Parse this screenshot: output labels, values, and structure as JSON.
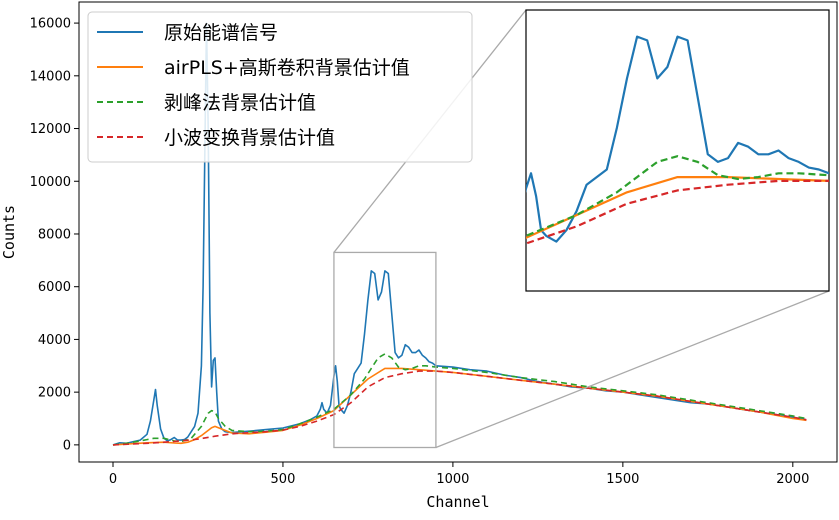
{
  "chart_data": {
    "type": "line",
    "title": "",
    "xlabel": "Channel",
    "ylabel": "Counts",
    "xlim": [
      -100,
      2130
    ],
    "ylim": [
      -650,
      16800
    ],
    "xticks": [
      0,
      500,
      1000,
      1500,
      2000
    ],
    "yticks": [
      0,
      2000,
      4000,
      6000,
      8000,
      10000,
      12000,
      14000,
      16000
    ],
    "legend_position": "top-left",
    "series": [
      {
        "name": "原始能谱信号",
        "color": "#1f77b4",
        "style": "solid",
        "x": [
          0,
          20,
          40,
          60,
          80,
          100,
          110,
          120,
          125,
          130,
          140,
          150,
          160,
          170,
          180,
          190,
          200,
          210,
          220,
          230,
          240,
          250,
          260,
          265,
          270,
          275,
          280,
          285,
          290,
          295,
          300,
          305,
          310,
          320,
          330,
          340,
          350,
          380,
          400,
          450,
          500,
          550,
          580,
          600,
          610,
          615,
          620,
          630,
          640,
          650,
          655,
          660,
          665,
          670,
          680,
          690,
          700,
          710,
          720,
          730,
          740,
          750,
          760,
          770,
          775,
          780,
          790,
          800,
          810,
          820,
          830,
          840,
          850,
          860,
          870,
          880,
          890,
          900,
          910,
          920,
          930,
          940,
          950,
          1000,
          1050,
          1100,
          1150,
          1200,
          1250,
          1300,
          1350,
          1400,
          1450,
          1500,
          1550,
          1600,
          1650,
          1700,
          1750,
          1800,
          1850,
          1900,
          1950,
          2000,
          2040
        ],
        "y": [
          0,
          80,
          60,
          120,
          180,
          400,
          900,
          1700,
          2100,
          1500,
          600,
          250,
          150,
          200,
          280,
          180,
          180,
          200,
          300,
          500,
          700,
          1200,
          3000,
          6000,
          11000,
          16000,
          12000,
          5000,
          2200,
          3200,
          3300,
          2000,
          900,
          600,
          500,
          480,
          470,
          500,
          520,
          580,
          640,
          800,
          950,
          1100,
          1350,
          1600,
          1350,
          1200,
          1500,
          2600,
          3000,
          2400,
          1500,
          1350,
          1200,
          1500,
          2000,
          2700,
          2900,
          3100,
          4200,
          5500,
          6600,
          6500,
          6000,
          5500,
          5800,
          6600,
          6500,
          5000,
          3500,
          3300,
          3400,
          3800,
          3700,
          3500,
          3500,
          3600,
          3400,
          3300,
          3150,
          3100,
          3000,
          2950,
          2850,
          2800,
          2650,
          2550,
          2400,
          2300,
          2200,
          2150,
          2050,
          2000,
          1900,
          1800,
          1700,
          1600,
          1550,
          1450,
          1350,
          1250,
          1150,
          1050,
          950
        ]
      },
      {
        "name": "airPLS+高斯卷积背景估计值",
        "color": "#ff7f0e",
        "style": "solid",
        "x": [
          0,
          50,
          100,
          150,
          180,
          200,
          220,
          240,
          260,
          280,
          290,
          300,
          310,
          330,
          350,
          400,
          450,
          500,
          550,
          600,
          650,
          700,
          750,
          800,
          850,
          900,
          950,
          1000,
          1100,
          1200,
          1300,
          1400,
          1500,
          1600,
          1700,
          1800,
          1900,
          2000,
          2040
        ],
        "y": [
          0,
          40,
          80,
          100,
          70,
          60,
          100,
          200,
          350,
          550,
          650,
          700,
          650,
          550,
          450,
          420,
          480,
          550,
          750,
          1000,
          1300,
          1900,
          2500,
          2900,
          2900,
          2850,
          2800,
          2750,
          2600,
          2450,
          2300,
          2150,
          2000,
          1850,
          1650,
          1450,
          1250,
          1000,
          930
        ]
      },
      {
        "name": "剥峰法背景估计值",
        "color": "#2ca02c",
        "style": "dashed",
        "x": [
          0,
          50,
          100,
          120,
          150,
          180,
          200,
          230,
          260,
          280,
          290,
          300,
          310,
          330,
          350,
          400,
          450,
          500,
          550,
          600,
          650,
          700,
          740,
          760,
          780,
          800,
          820,
          840,
          860,
          880,
          900,
          920,
          950,
          1000,
          1100,
          1200,
          1300,
          1400,
          1500,
          1600,
          1700,
          1800,
          1900,
          2000,
          2040
        ],
        "y": [
          0,
          80,
          200,
          250,
          250,
          150,
          120,
          250,
          700,
          1200,
          1300,
          1250,
          1000,
          700,
          550,
          500,
          520,
          580,
          800,
          1050,
          1350,
          1900,
          2500,
          2900,
          3300,
          3450,
          3300,
          2950,
          2850,
          2900,
          3000,
          3000,
          2950,
          2900,
          2750,
          2550,
          2400,
          2200,
          2050,
          1900,
          1700,
          1500,
          1300,
          1100,
          1000
        ]
      },
      {
        "name": "小波变换背景估计值",
        "color": "#d62728",
        "style": "dashed",
        "x": [
          0,
          50,
          100,
          150,
          200,
          250,
          300,
          350,
          400,
          450,
          500,
          550,
          600,
          650,
          700,
          750,
          800,
          850,
          900,
          950,
          1000,
          1100,
          1200,
          1300,
          1400,
          1500,
          1600,
          1700,
          1800,
          1900,
          2000,
          2040
        ],
        "y": [
          0,
          30,
          60,
          100,
          150,
          220,
          330,
          420,
          460,
          500,
          560,
          700,
          900,
          1150,
          1600,
          2200,
          2550,
          2700,
          2800,
          2800,
          2750,
          2600,
          2450,
          2300,
          2150,
          2000,
          1850,
          1650,
          1450,
          1250,
          1050,
          950
        ]
      }
    ],
    "inset": {
      "xlim": [
        650,
        950
      ],
      "ylim": [
        -100,
        7300
      ],
      "border_color": "#000000",
      "source_box_color": "#aaaaaa"
    }
  }
}
